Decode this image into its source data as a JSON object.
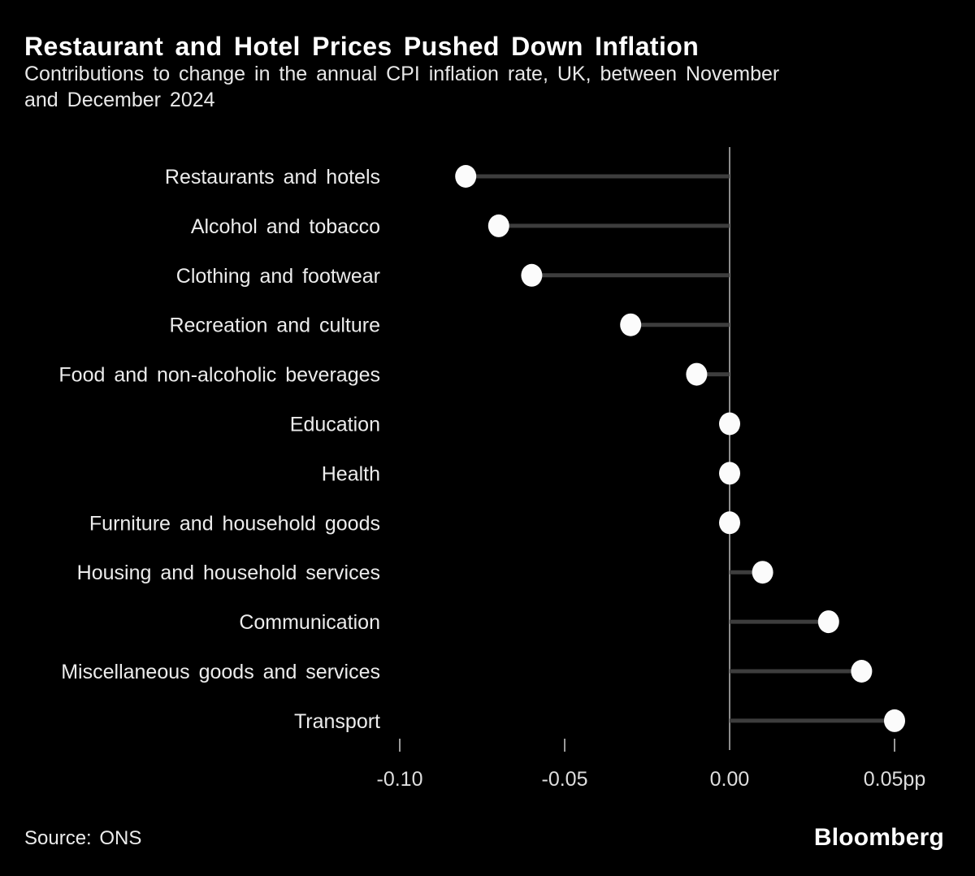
{
  "header": {
    "title": "Restaurant and Hotel Prices Pushed Down Inflation",
    "subtitle_lines": [
      "Contributions to change in the annual CPI inflation rate, UK, between November",
      "and December 2024"
    ]
  },
  "chart_data": {
    "type": "scatter",
    "subtype": "lollipop-horizontal",
    "title": "Restaurant and Hotel Prices Pushed Down Inflation",
    "subtitle": "Contributions to change in the annual CPI inflation rate, UK, between November and December 2024",
    "categories": [
      "Restaurants and hotels",
      "Alcohol and tobacco",
      "Clothing and footwear",
      "Recreation and culture",
      "Food and non-alcoholic beverages",
      "Education",
      "Health",
      "Furniture and household goods",
      "Housing and household services",
      "Communication",
      "Miscellaneous goods and services",
      "Transport"
    ],
    "values": [
      -0.08,
      -0.07,
      -0.06,
      -0.03,
      -0.01,
      0.0,
      0.0,
      0.0,
      0.01,
      0.03,
      0.04,
      0.05
    ],
    "unit": "pp",
    "xlabel": "",
    "ylabel": "",
    "xlim": [
      -0.125,
      0.065
    ],
    "x_ticks": [
      {
        "value": -0.1,
        "label": "-0.10"
      },
      {
        "value": -0.05,
        "label": "-0.05"
      },
      {
        "value": 0.0,
        "label": "0.00"
      },
      {
        "value": 0.05,
        "label": "0.05pp"
      }
    ],
    "grid": false,
    "legend": "none",
    "zero_baseline": true
  },
  "footer": {
    "source": "Source: ONS",
    "brand": "Bloomberg"
  },
  "colors": {
    "background": "#000000",
    "title_text": "#ffffff",
    "subtitle_text": "#e8e8e8",
    "category_text": "#ececec",
    "tick_text": "#dedede",
    "dot_fill": "#fbfbfb",
    "stem_stroke": "#3d3d3d",
    "axis_stroke": "#8c8c8c",
    "tick_stroke": "#9a9a9a"
  }
}
